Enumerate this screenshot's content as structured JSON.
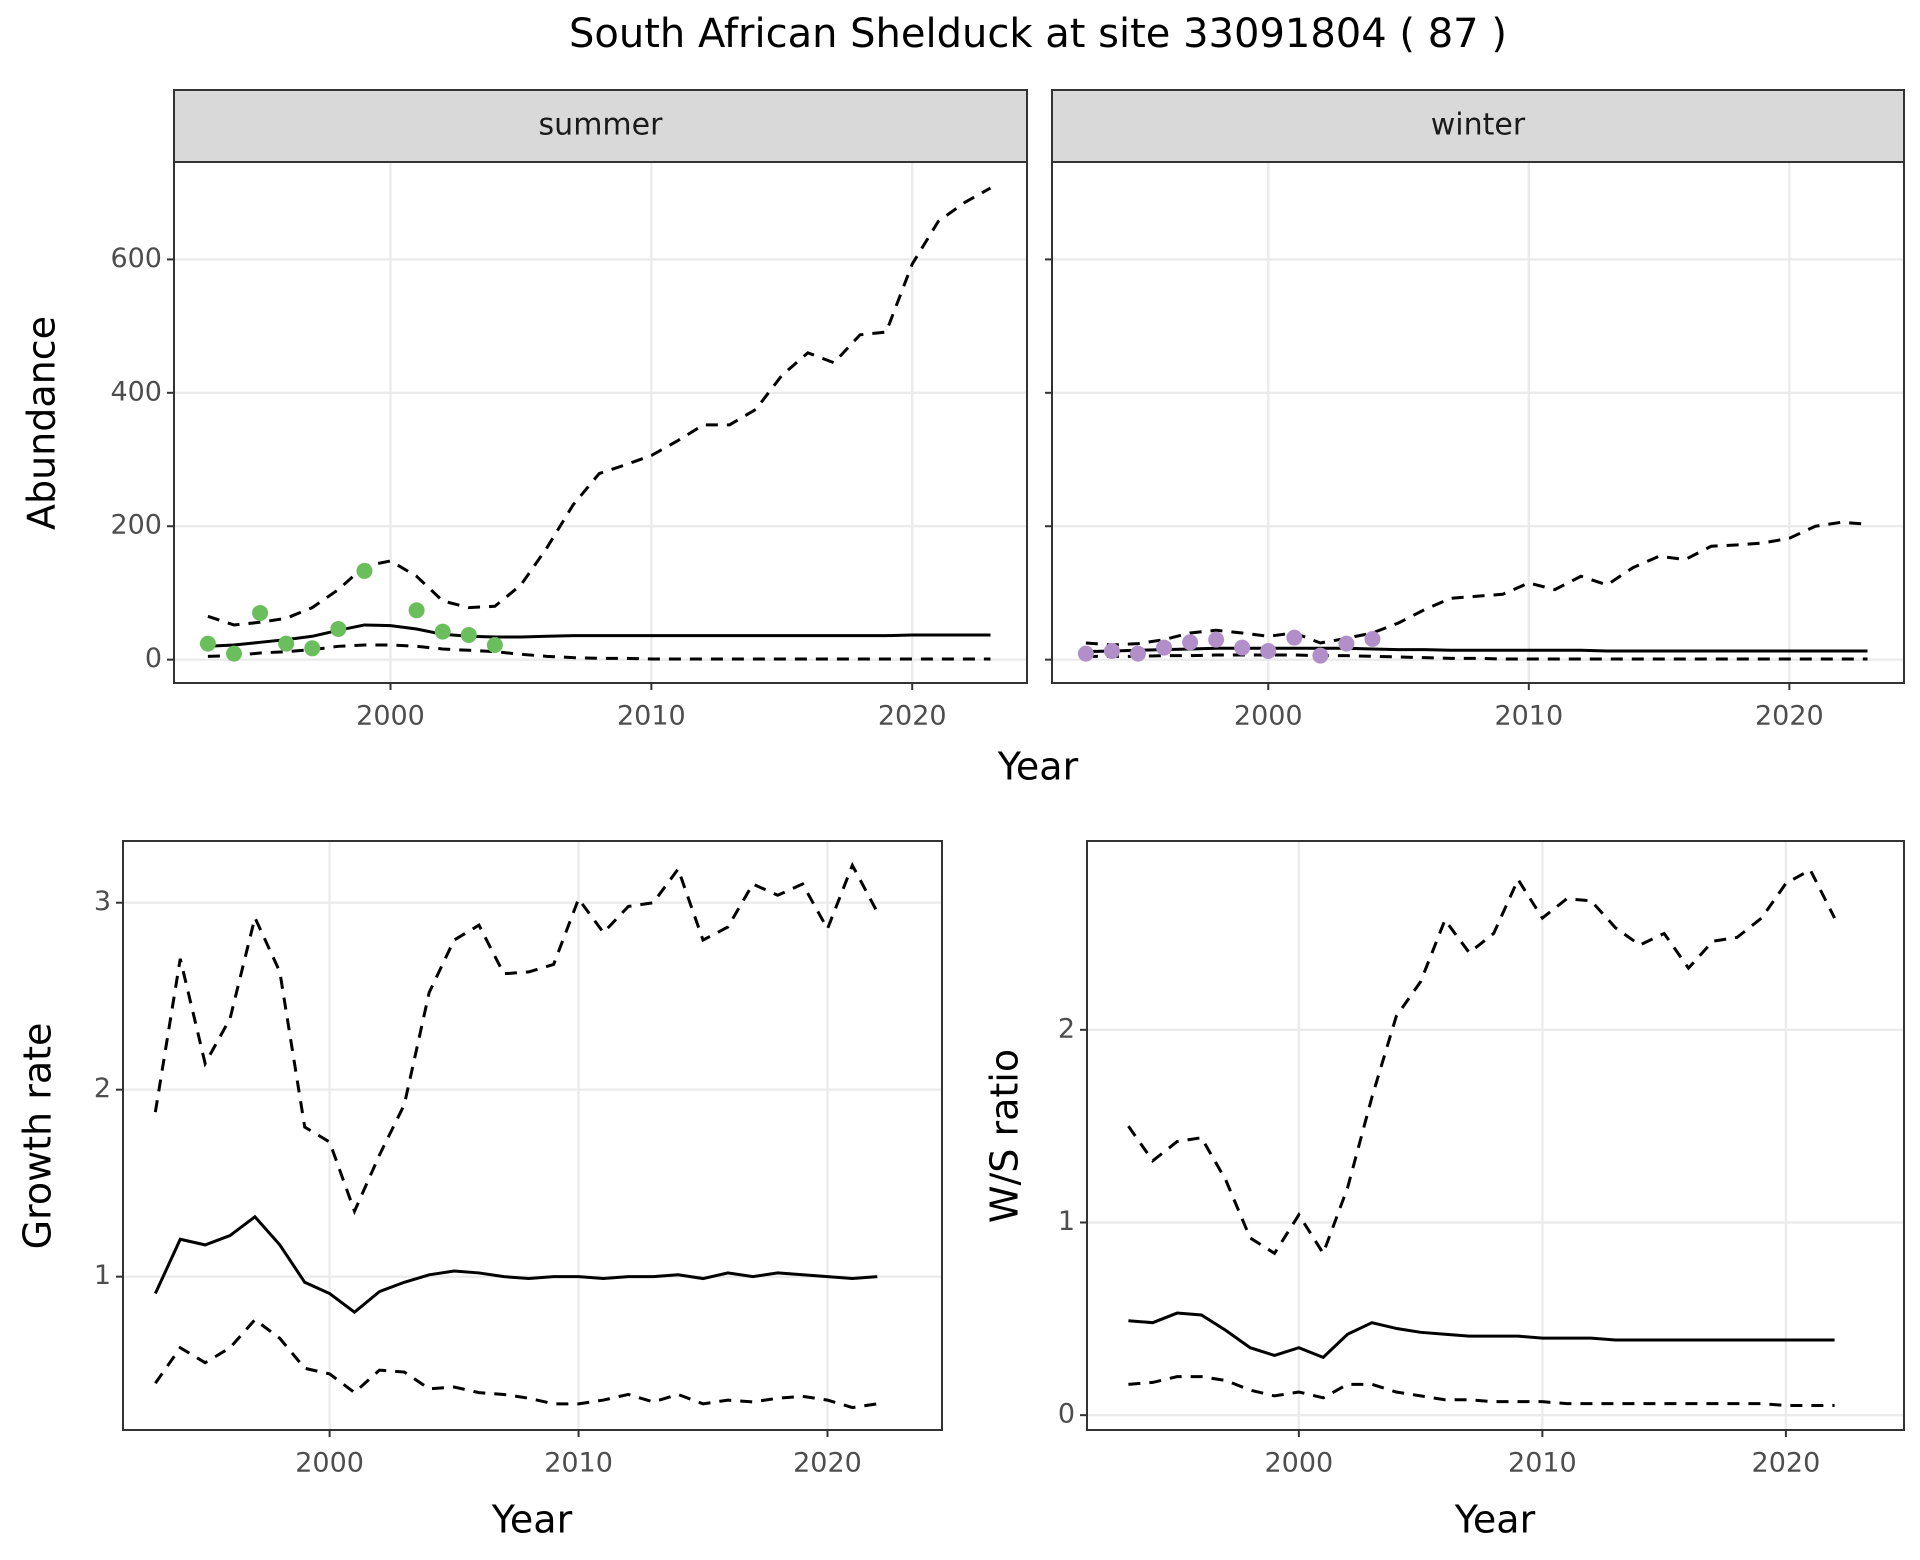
{
  "title": "South African Shelduck at site 33091804 ( 87 )",
  "chart_data": [
    {
      "type": "line",
      "facet": "summer",
      "xlabel": "Year",
      "ylabel": "Abundance",
      "x": [
        1993,
        1994,
        1995,
        1996,
        1997,
        1998,
        1999,
        2000,
        2001,
        2002,
        2003,
        2004,
        2005,
        2006,
        2007,
        2008,
        2009,
        2010,
        2011,
        2012,
        2013,
        2014,
        2015,
        2016,
        2017,
        2018,
        2019,
        2020,
        2021,
        2022,
        2023
      ],
      "series": [
        {
          "color": "#000000",
          "linestyle": "solid",
          "values": [
            20,
            22,
            26,
            30,
            35,
            44,
            52,
            51,
            46,
            38,
            35,
            34,
            34,
            35,
            36,
            36,
            36,
            36,
            36,
            36,
            36,
            36,
            36,
            36,
            36,
            36,
            36,
            37,
            37,
            37,
            37
          ]
        },
        {
          "color": "#000000",
          "linestyle": "dashed",
          "values": [
            65,
            52,
            56,
            62,
            78,
            105,
            140,
            148,
            125,
            88,
            78,
            80,
            112,
            168,
            232,
            279,
            292,
            306,
            328,
            352,
            352,
            375,
            426,
            460,
            445,
            487,
            491,
            593,
            657,
            685,
            707
          ]
        },
        {
          "color": "#000000",
          "linestyle": "dashed",
          "values": [
            5,
            6,
            10,
            12,
            15,
            20,
            22,
            22,
            20,
            16,
            14,
            12,
            8,
            5,
            3,
            2,
            2,
            1,
            1,
            1,
            1,
            1,
            1,
            1,
            1,
            1,
            1,
            1,
            1,
            1,
            1
          ]
        }
      ],
      "points": {
        "color": "#6abf5c",
        "x": [
          1993,
          1994,
          1995,
          1996,
          1997,
          1998,
          1999,
          2000,
          2001,
          2002,
          2003,
          2004
        ],
        "values": [
          24,
          9,
          70,
          24,
          17,
          46,
          133,
          null,
          74,
          42,
          37,
          22
        ]
      },
      "xlim": [
        1991.7,
        2024.4
      ],
      "xticks": [
        2000,
        2010,
        2020
      ],
      "ylim": [
        -35,
        746
      ],
      "yticks": [
        0,
        200,
        400,
        600
      ],
      "show_ytick_labels": true,
      "grid": true
    },
    {
      "type": "line",
      "facet": "winter",
      "x": [
        1993,
        1994,
        1995,
        1996,
        1997,
        1998,
        1999,
        2000,
        2001,
        2002,
        2003,
        2004,
        2005,
        2006,
        2007,
        2008,
        2009,
        2010,
        2011,
        2012,
        2013,
        2014,
        2015,
        2016,
        2017,
        2018,
        2019,
        2020,
        2021,
        2022,
        2023
      ],
      "series": [
        {
          "color": "#000000",
          "linestyle": "solid",
          "values": [
            12,
            13,
            14,
            15,
            16,
            17,
            17,
            17,
            17,
            17,
            17,
            16,
            15,
            15,
            14,
            14,
            14,
            14,
            14,
            14,
            13,
            13,
            13,
            13,
            13,
            13,
            13,
            13,
            13,
            13,
            13
          ]
        },
        {
          "color": "#000000",
          "linestyle": "dashed",
          "values": [
            25,
            22,
            24,
            30,
            40,
            44,
            40,
            35,
            40,
            25,
            32,
            40,
            55,
            75,
            92,
            95,
            98,
            115,
            105,
            125,
            112,
            138,
            155,
            150,
            170,
            172,
            175,
            182,
            200,
            206,
            203
          ]
        },
        {
          "color": "#000000",
          "linestyle": "dashed",
          "values": [
            5,
            5,
            5,
            6,
            6,
            7,
            7,
            7,
            7,
            6,
            6,
            5,
            4,
            3,
            2,
            2,
            1,
            1,
            1,
            1,
            1,
            1,
            1,
            1,
            1,
            1,
            1,
            1,
            1,
            1,
            1
          ]
        }
      ],
      "points": {
        "color": "#b28fc9",
        "x": [
          1993,
          1994,
          1995,
          1996,
          1997,
          1998,
          1999,
          2000,
          2001,
          2002,
          2003,
          2004
        ],
        "values": [
          9,
          13,
          9,
          18,
          26,
          30,
          18,
          13,
          33,
          6,
          24,
          31
        ]
      },
      "xlim": [
        1991.7,
        2024.4
      ],
      "xticks": [
        2000,
        2010,
        2020
      ],
      "ylim": [
        -35,
        746
      ],
      "yticks": [
        0,
        200,
        400,
        600
      ],
      "show_ytick_labels": false,
      "grid": true
    },
    {
      "type": "line",
      "xlabel": "Year",
      "ylabel": "Growth rate",
      "x": [
        1993,
        1994,
        1995,
        1996,
        1997,
        1998,
        1999,
        2000,
        2001,
        2002,
        2003,
        2004,
        2005,
        2006,
        2007,
        2008,
        2009,
        2010,
        2011,
        2012,
        2013,
        2014,
        2015,
        2016,
        2017,
        2018,
        2019,
        2020,
        2021,
        2022
      ],
      "series": [
        {
          "color": "#000000",
          "linestyle": "solid",
          "values": [
            0.91,
            1.2,
            1.17,
            1.22,
            1.32,
            1.17,
            0.97,
            0.91,
            0.81,
            0.92,
            0.97,
            1.01,
            1.03,
            1.02,
            1.0,
            0.99,
            1.0,
            1.0,
            0.99,
            1.0,
            1.0,
            1.01,
            0.99,
            1.02,
            1.0,
            1.02,
            1.01,
            1.0,
            0.99,
            1.0
          ]
        },
        {
          "color": "#000000",
          "linestyle": "dashed",
          "values": [
            1.88,
            2.7,
            2.14,
            2.38,
            2.92,
            2.63,
            1.8,
            1.72,
            1.35,
            1.65,
            1.92,
            2.52,
            2.8,
            2.88,
            2.62,
            2.63,
            2.67,
            3.02,
            2.84,
            2.98,
            3.0,
            3.18,
            2.8,
            2.87,
            3.1,
            3.04,
            3.1,
            2.86,
            3.2,
            2.95
          ]
        },
        {
          "color": "#000000",
          "linestyle": "dashed",
          "values": [
            0.43,
            0.62,
            0.54,
            0.62,
            0.77,
            0.67,
            0.51,
            0.48,
            0.38,
            0.5,
            0.49,
            0.4,
            0.41,
            0.38,
            0.37,
            0.35,
            0.32,
            0.32,
            0.34,
            0.37,
            0.33,
            0.37,
            0.32,
            0.34,
            0.33,
            0.35,
            0.36,
            0.34,
            0.3,
            0.32
          ]
        }
      ],
      "xlim": [
        1991.7,
        2024.6
      ],
      "xticks": [
        2000,
        2010,
        2020
      ],
      "ylim": [
        0.18,
        3.33
      ],
      "yticks": [
        1,
        2,
        3
      ],
      "show_ytick_labels": true,
      "grid": true
    },
    {
      "type": "line",
      "xlabel": "Year",
      "ylabel": "W/S ratio",
      "x": [
        1993,
        1994,
        1995,
        1996,
        1997,
        1998,
        1999,
        2000,
        2001,
        2002,
        2003,
        2004,
        2005,
        2006,
        2007,
        2008,
        2009,
        2010,
        2011,
        2012,
        2013,
        2014,
        2015,
        2016,
        2017,
        2018,
        2019,
        2020,
        2021,
        2022
      ],
      "series": [
        {
          "color": "#000000",
          "linestyle": "solid",
          "values": [
            0.49,
            0.48,
            0.53,
            0.52,
            0.44,
            0.35,
            0.31,
            0.35,
            0.3,
            0.42,
            0.48,
            0.45,
            0.43,
            0.42,
            0.41,
            0.41,
            0.41,
            0.4,
            0.4,
            0.4,
            0.39,
            0.39,
            0.39,
            0.39,
            0.39,
            0.39,
            0.39,
            0.39,
            0.39,
            0.39
          ]
        },
        {
          "color": "#000000",
          "linestyle": "dashed",
          "values": [
            1.5,
            1.32,
            1.42,
            1.44,
            1.22,
            0.92,
            0.84,
            1.04,
            0.84,
            1.18,
            1.65,
            2.07,
            2.25,
            2.57,
            2.4,
            2.5,
            2.78,
            2.58,
            2.68,
            2.67,
            2.53,
            2.44,
            2.5,
            2.32,
            2.46,
            2.48,
            2.58,
            2.76,
            2.83,
            2.58
          ]
        },
        {
          "color": "#000000",
          "linestyle": "dashed",
          "values": [
            0.16,
            0.17,
            0.2,
            0.2,
            0.18,
            0.13,
            0.1,
            0.12,
            0.09,
            0.16,
            0.16,
            0.12,
            0.1,
            0.08,
            0.08,
            0.07,
            0.07,
            0.07,
            0.06,
            0.06,
            0.06,
            0.06,
            0.06,
            0.06,
            0.06,
            0.06,
            0.06,
            0.05,
            0.05,
            0.05
          ]
        }
      ],
      "xlim": [
        1991.3,
        2024.85
      ],
      "xticks": [
        2000,
        2010,
        2020
      ],
      "ylim": [
        -0.077,
        2.98
      ],
      "yticks": [
        0,
        1,
        2
      ],
      "show_ytick_labels": true,
      "grid": true
    }
  ]
}
